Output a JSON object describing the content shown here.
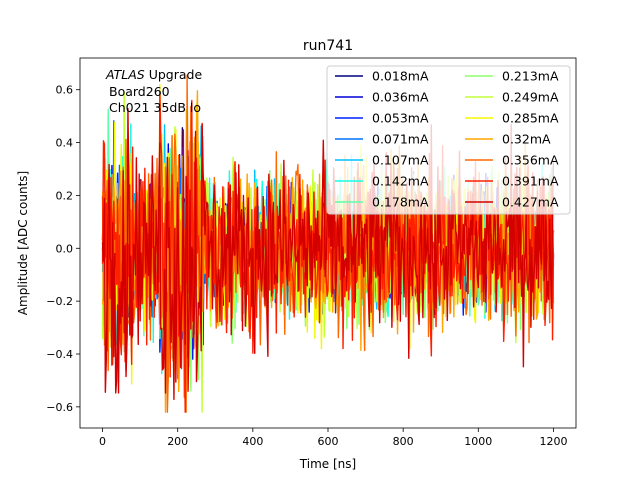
{
  "chart_data": {
    "type": "line",
    "title": "run741",
    "xlabel": "Time [ns]",
    "ylabel": "Amplitude [ADC counts]",
    "xlim": [
      -60,
      1260
    ],
    "ylim": [
      -0.68,
      0.72
    ],
    "xticks": [
      0,
      200,
      400,
      600,
      800,
      1000,
      1200
    ],
    "xtick_labels": [
      "0",
      "200",
      "400",
      "600",
      "800",
      "1000",
      "1200"
    ],
    "yticks": [
      -0.6,
      -0.4,
      -0.2,
      0.0,
      0.2,
      0.4,
      0.6
    ],
    "ytick_labels": [
      "−0.6",
      "−0.4",
      "−0.2",
      "0.0",
      "0.2",
      "0.4",
      "0.6"
    ],
    "annotation": {
      "atlas": "ATLAS",
      "upgrade": "Upgrade",
      "board": "Board260",
      "channel": "Ch021 35dB lo"
    },
    "legend_position": "top-right",
    "legend_columns": 2,
    "time_range_ns": [
      0,
      1200
    ],
    "series": [
      {
        "name": "0.018mA",
        "color": "#00007f"
      },
      {
        "name": "0.036mA",
        "color": "#0000d9"
      },
      {
        "name": "0.053mA",
        "color": "#0020ff"
      },
      {
        "name": "0.071mA",
        "color": "#0070ff"
      },
      {
        "name": "0.107mA",
        "color": "#00c0ff"
      },
      {
        "name": "0.142mA",
        "color": "#16ffe1"
      },
      {
        "name": "0.178mA",
        "color": "#5dffa8"
      },
      {
        "name": "0.213mA",
        "color": "#8dff6a"
      },
      {
        "name": "0.249mA",
        "color": "#c1ff36"
      },
      {
        "name": "0.285mA",
        "color": "#f4f802"
      },
      {
        "name": "0.32mA",
        "color": "#ffa700"
      },
      {
        "name": "0.356mA",
        "color": "#ff6800"
      },
      {
        "name": "0.391mA",
        "color": "#ff2000"
      },
      {
        "name": "0.427mA",
        "color": "#d40000"
      }
    ]
  }
}
